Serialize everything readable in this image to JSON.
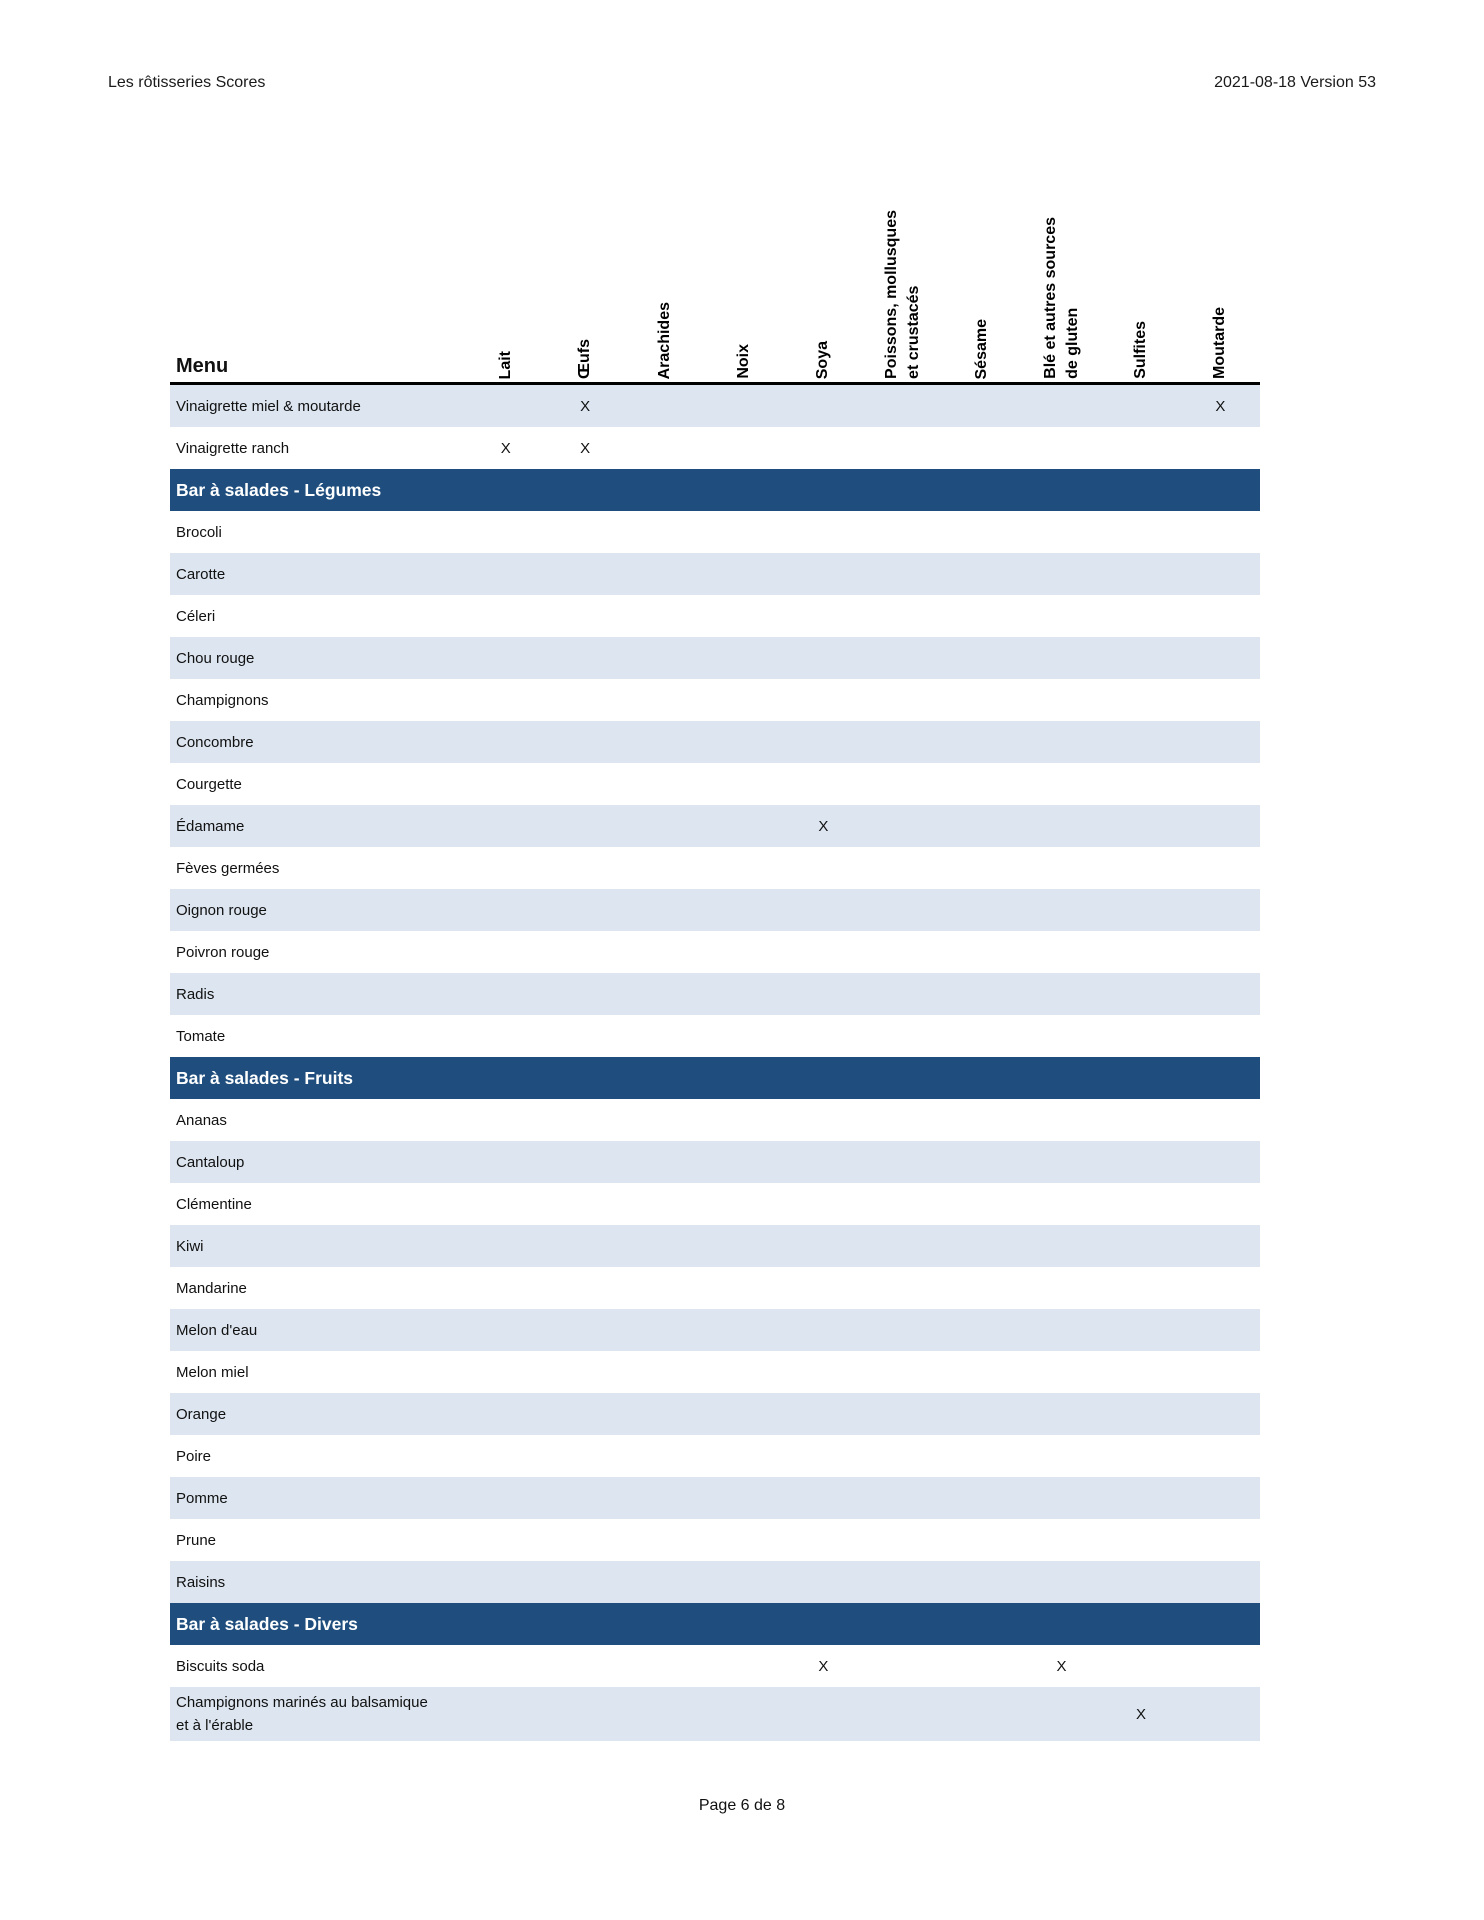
{
  "page_header": {
    "left": "Les rôtisseries Scores",
    "right": "2021-08-18 Version 53"
  },
  "footer": {
    "text": "Page 6 de 8"
  },
  "colors": {
    "section_bg": "#1F4E7E",
    "row_shaded_bg": "#DCE5F0",
    "header_rule": "#000000"
  },
  "table": {
    "menu_header": "Menu",
    "mark_symbol": "X",
    "columns": [
      {
        "id": "lait",
        "label": "Lait"
      },
      {
        "id": "oeufs",
        "label": "Œufs"
      },
      {
        "id": "arachides",
        "label": "Arachides"
      },
      {
        "id": "noix",
        "label": "Noix"
      },
      {
        "id": "soya",
        "label": "Soya"
      },
      {
        "id": "poissons",
        "label": "Poissons, mollusques\net crustacés"
      },
      {
        "id": "sesame",
        "label": "Sésame"
      },
      {
        "id": "ble",
        "label": "Blé et autres sources\nde gluten"
      },
      {
        "id": "sulfites",
        "label": "Sulfites"
      },
      {
        "id": "moutarde",
        "label": "Moutarde"
      }
    ],
    "rows": [
      {
        "type": "item",
        "label": "Vinaigrette miel & moutarde",
        "shaded": true,
        "marks": [
          "oeufs",
          "moutarde"
        ]
      },
      {
        "type": "item",
        "label": "Vinaigrette ranch",
        "shaded": false,
        "marks": [
          "lait",
          "oeufs"
        ]
      },
      {
        "type": "section",
        "label": "Bar à salades - Légumes"
      },
      {
        "type": "item",
        "label": "Brocoli",
        "shaded": false,
        "marks": []
      },
      {
        "type": "item",
        "label": "Carotte",
        "shaded": true,
        "marks": []
      },
      {
        "type": "item",
        "label": "Céleri",
        "shaded": false,
        "marks": []
      },
      {
        "type": "item",
        "label": "Chou rouge",
        "shaded": true,
        "marks": []
      },
      {
        "type": "item",
        "label": "Champignons",
        "shaded": false,
        "marks": []
      },
      {
        "type": "item",
        "label": "Concombre",
        "shaded": true,
        "marks": []
      },
      {
        "type": "item",
        "label": "Courgette",
        "shaded": false,
        "marks": []
      },
      {
        "type": "item",
        "label": "Édamame",
        "shaded": true,
        "marks": [
          "soya"
        ]
      },
      {
        "type": "item",
        "label": "Fèves germées",
        "shaded": false,
        "marks": []
      },
      {
        "type": "item",
        "label": "Oignon rouge",
        "shaded": true,
        "marks": []
      },
      {
        "type": "item",
        "label": "Poivron rouge",
        "shaded": false,
        "marks": []
      },
      {
        "type": "item",
        "label": "Radis",
        "shaded": true,
        "marks": []
      },
      {
        "type": "item",
        "label": "Tomate",
        "shaded": false,
        "marks": []
      },
      {
        "type": "section",
        "label": "Bar à salades - Fruits"
      },
      {
        "type": "item",
        "label": "Ananas",
        "shaded": false,
        "marks": []
      },
      {
        "type": "item",
        "label": "Cantaloup",
        "shaded": true,
        "marks": []
      },
      {
        "type": "item",
        "label": "Clémentine",
        "shaded": false,
        "marks": []
      },
      {
        "type": "item",
        "label": "Kiwi",
        "shaded": true,
        "marks": []
      },
      {
        "type": "item",
        "label": "Mandarine",
        "shaded": false,
        "marks": []
      },
      {
        "type": "item",
        "label": "Melon d'eau",
        "shaded": true,
        "marks": []
      },
      {
        "type": "item",
        "label": "Melon miel",
        "shaded": false,
        "marks": []
      },
      {
        "type": "item",
        "label": "Orange",
        "shaded": true,
        "marks": []
      },
      {
        "type": "item",
        "label": "Poire",
        "shaded": false,
        "marks": []
      },
      {
        "type": "item",
        "label": "Pomme",
        "shaded": true,
        "marks": []
      },
      {
        "type": "item",
        "label": "Prune",
        "shaded": false,
        "marks": []
      },
      {
        "type": "item",
        "label": "Raisins",
        "shaded": true,
        "marks": []
      },
      {
        "type": "section",
        "label": "Bar à salades - Divers"
      },
      {
        "type": "item",
        "label": "Biscuits soda",
        "shaded": false,
        "marks": [
          "soya",
          "ble"
        ]
      },
      {
        "type": "item",
        "label": "Champignons marinés au balsamique\net à l'érable",
        "shaded": true,
        "marks": [
          "sulfites"
        ]
      }
    ]
  }
}
